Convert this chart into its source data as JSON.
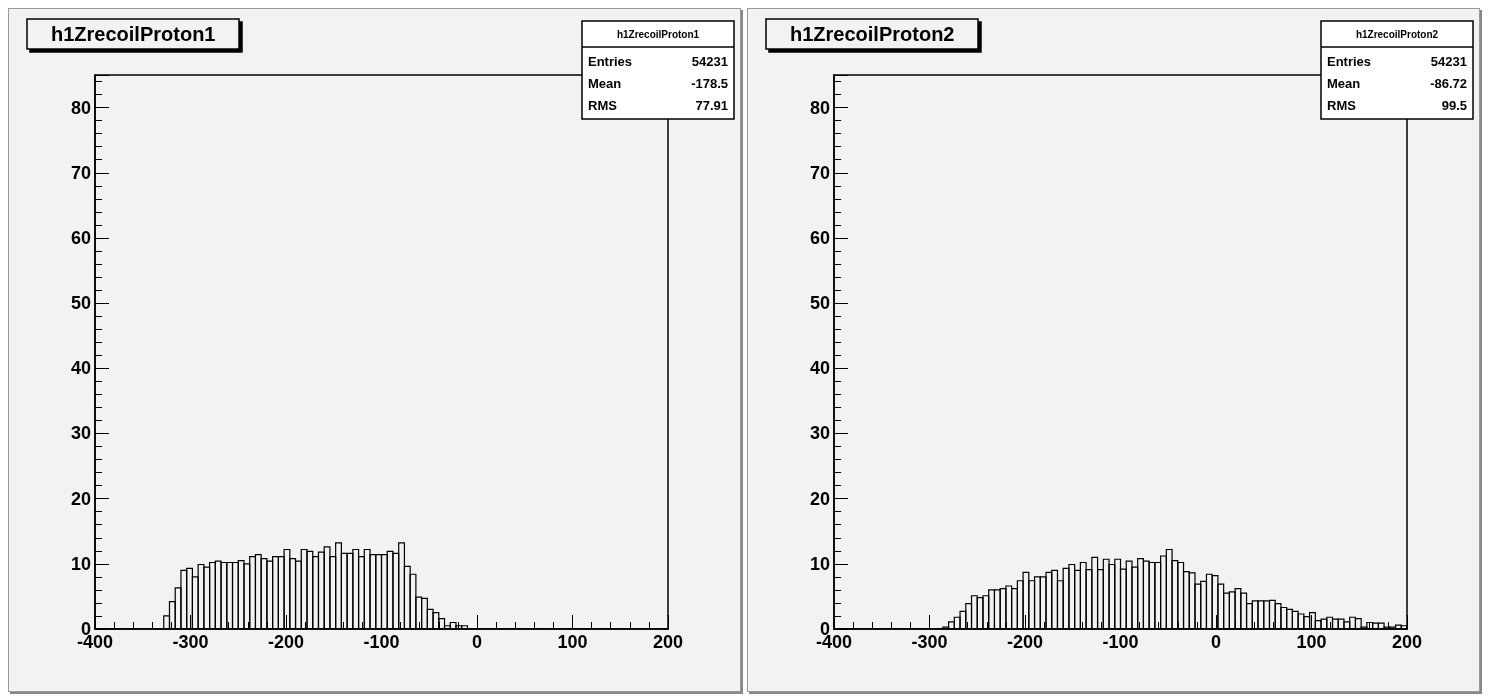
{
  "chart_data": [
    {
      "type": "histogram",
      "title": "h1ZrecoilProton1",
      "bins": [
        -400,
        -394,
        -388,
        -382,
        -376,
        -370,
        -364,
        -358,
        -352,
        -346,
        -340,
        -334,
        -328,
        -322,
        -316,
        -310,
        -304,
        -298,
        -292,
        -286,
        -280,
        -274,
        -268,
        -262,
        -256,
        -250,
        -244,
        -238,
        -232,
        -226,
        -220,
        -214,
        -208,
        -202,
        -196,
        -190,
        -184,
        -178,
        -172,
        -166,
        -160,
        -154,
        -148,
        -142,
        -136,
        -130,
        -124,
        -118,
        -112,
        -106,
        -100,
        -94,
        -88,
        -82,
        -76,
        -70,
        -64,
        -58,
        -52,
        -46,
        -40,
        -34,
        -28,
        -22,
        -16,
        -10,
        -4,
        2,
        8,
        14,
        20,
        26,
        32,
        38,
        44,
        50,
        56,
        62,
        68,
        74,
        80,
        86,
        92,
        98,
        104,
        110,
        116,
        122,
        128,
        134,
        140,
        146,
        152,
        158,
        164,
        170,
        176,
        182,
        188,
        194,
        200
      ],
      "values": [
        0,
        0,
        0,
        0,
        0,
        0,
        0,
        0,
        0,
        0,
        0,
        0,
        2,
        4.2,
        6.3,
        9,
        9.3,
        8,
        9.9,
        9.5,
        10.2,
        10.4,
        10.2,
        10.2,
        10.2,
        10.5,
        10,
        11.1,
        11.4,
        10.8,
        10.4,
        11.1,
        11.1,
        12.2,
        10.8,
        10.4,
        12.2,
        11.9,
        11.1,
        11.8,
        12.6,
        11.1,
        13.2,
        11.6,
        11.6,
        12.2,
        11.1,
        12.2,
        11.4,
        11.4,
        11.4,
        11.9,
        11.6,
        13.2,
        9.6,
        8.4,
        4.9,
        4.7,
        3,
        2.5,
        1.6,
        0.5,
        1,
        0.5,
        0.5,
        0,
        0,
        0,
        0,
        0,
        0,
        0,
        0,
        0,
        0,
        0,
        0,
        0,
        0,
        0,
        0,
        0,
        0,
        0,
        0,
        0,
        0,
        0,
        0,
        0,
        0,
        0,
        0,
        0,
        0,
        0,
        0,
        0,
        0,
        0
      ],
      "color": "#000000",
      "xlim": [
        -400,
        200
      ],
      "xticks": [
        -400,
        -300,
        -200,
        -100,
        0,
        100,
        200
      ],
      "ylim": [
        0,
        85
      ],
      "yticks": [
        0,
        10,
        20,
        30,
        40,
        50,
        60,
        70,
        80
      ],
      "annotations": [
        "h1ZrecoilProton1",
        "Entries",
        "54231",
        "Mean",
        "-178.5",
        "RMS",
        "77.91"
      ]
    },
    {
      "type": "histogram",
      "title": "h1ZrecoilProton2",
      "bins": [
        -400,
        -394,
        -388,
        -382,
        -376,
        -370,
        -364,
        -358,
        -352,
        -346,
        -340,
        -334,
        -328,
        -322,
        -316,
        -310,
        -304,
        -298,
        -292,
        -286,
        -280,
        -274,
        -268,
        -262,
        -256,
        -250,
        -244,
        -238,
        -232,
        -226,
        -220,
        -214,
        -208,
        -202,
        -196,
        -190,
        -184,
        -178,
        -172,
        -166,
        -160,
        -154,
        -148,
        -142,
        -136,
        -130,
        -124,
        -118,
        -112,
        -106,
        -100,
        -94,
        -88,
        -82,
        -76,
        -70,
        -64,
        -58,
        -52,
        -46,
        -40,
        -34,
        -28,
        -22,
        -16,
        -10,
        -4,
        2,
        8,
        14,
        20,
        26,
        32,
        38,
        44,
        50,
        56,
        62,
        68,
        74,
        80,
        86,
        92,
        98,
        104,
        110,
        116,
        122,
        128,
        134,
        140,
        146,
        152,
        158,
        164,
        170,
        176,
        182,
        188,
        194,
        200
      ],
      "values": [
        0,
        0,
        0,
        0,
        0,
        0,
        0,
        0,
        0,
        0,
        0,
        0,
        0,
        0,
        0,
        0,
        0,
        0,
        0,
        0.3,
        1.1,
        1.8,
        2.7,
        3.9,
        5.1,
        4.8,
        5.1,
        6,
        6,
        6.2,
        6.6,
        6.2,
        7.4,
        8.7,
        7.4,
        8,
        8,
        8.7,
        9,
        7.4,
        9.3,
        9.9,
        9,
        10.2,
        9.1,
        11,
        9.1,
        10.7,
        9.9,
        10.7,
        9.2,
        10.4,
        9.5,
        10.8,
        10.4,
        10.2,
        10.2,
        11.2,
        12.2,
        10.5,
        10.2,
        8.8,
        8.6,
        6.9,
        7.3,
        8.4,
        8.2,
        6.9,
        5.5,
        5.7,
        6.2,
        5.5,
        3.9,
        4.3,
        4.3,
        4.3,
        4.4,
        3.9,
        3.3,
        3,
        2.7,
        2.3,
        1.9,
        2.5,
        1.3,
        1.5,
        1.8,
        1.5,
        1.5,
        1.1,
        1.8,
        1.6,
        0.3,
        1,
        0.9,
        0.9,
        0.3,
        0.3,
        0.6,
        0.5
      ],
      "color": "#000000",
      "xlim": [
        -400,
        200
      ],
      "xticks": [
        -400,
        -300,
        -200,
        -100,
        0,
        100,
        200
      ],
      "ylim": [
        0,
        85
      ],
      "yticks": [
        0,
        10,
        20,
        30,
        40,
        50,
        60,
        70,
        80
      ],
      "annotations": [
        "h1ZrecoilProton2",
        "Entries",
        "54231",
        "Mean",
        "-86.72",
        "RMS",
        "99.5"
      ]
    }
  ]
}
